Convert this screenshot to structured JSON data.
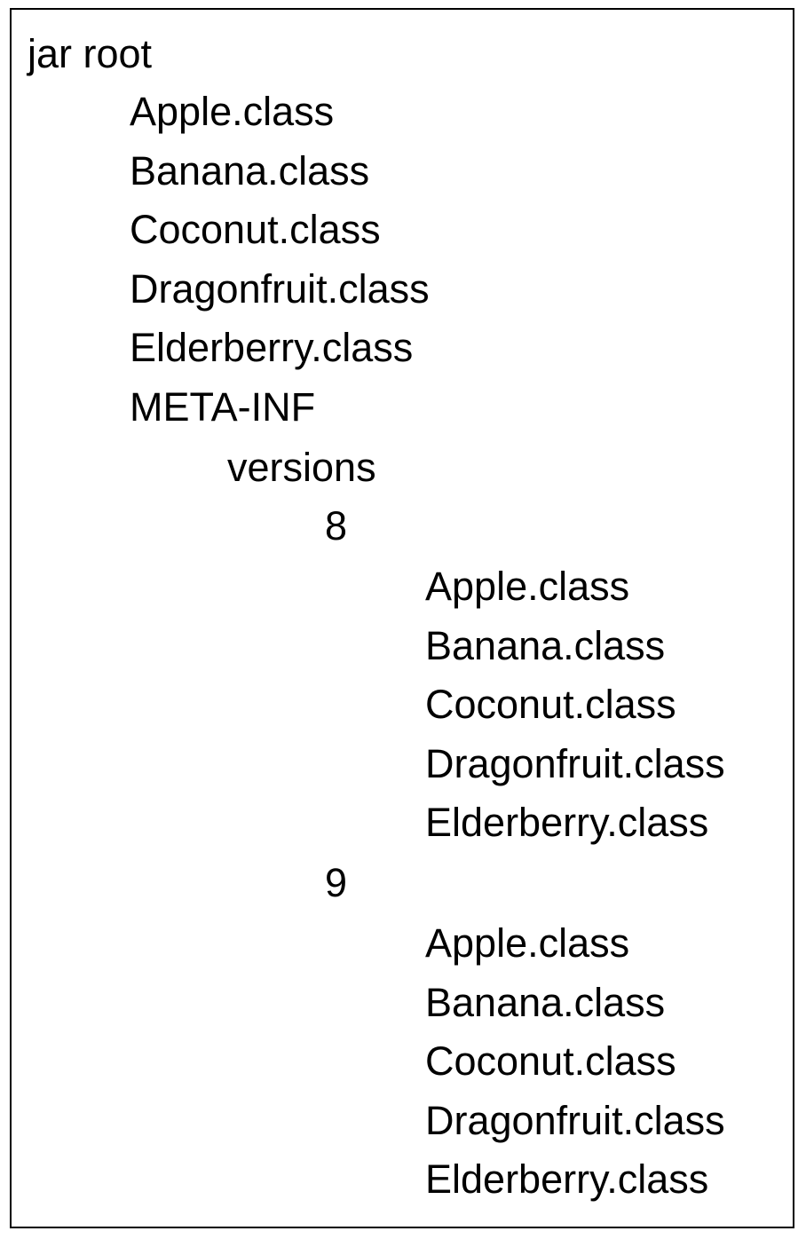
{
  "tree": {
    "root": "jar root",
    "root_files": [
      "Apple.class",
      "Banana.class",
      "Coconut.class",
      "Dragonfruit.class",
      "Elderberry.class"
    ],
    "meta_inf": "META-INF",
    "versions": "versions",
    "version_8": {
      "label": "8",
      "files": [
        "Apple.class",
        "Banana.class",
        "Coconut.class",
        "Dragonfruit.class",
        "Elderberry.class"
      ]
    },
    "version_9": {
      "label": "9",
      "files": [
        "Apple.class",
        "Banana.class",
        "Coconut.class",
        "Dragonfruit.class",
        "Elderberry.class"
      ]
    }
  }
}
